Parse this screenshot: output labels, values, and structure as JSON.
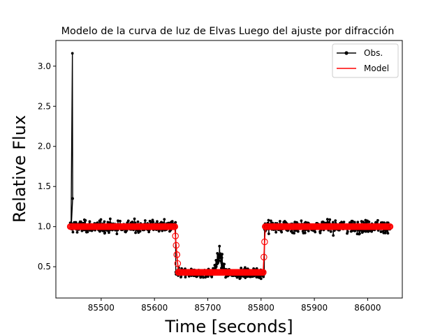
{
  "chart_data": {
    "type": "line",
    "title": "Modelo de la curva de luz de Elvas Luego del ajuste por difracción",
    "xlabel": "Time [seconds]",
    "ylabel": "Relative Flux",
    "xlim": [
      85415,
      86065
    ],
    "ylim": [
      0.11,
      3.32
    ],
    "xticks": [
      85500,
      85600,
      85700,
      85800,
      85900,
      86000
    ],
    "yticks": [
      0.5,
      1.0,
      1.5,
      2.0,
      2.5,
      3.0
    ],
    "xtick_labels": [
      "85500",
      "85600",
      "85700",
      "85800",
      "85900",
      "86000"
    ],
    "ytick_labels": [
      "0.5",
      "1.0",
      "1.5",
      "2.0",
      "2.5",
      "3.0"
    ],
    "legend_position": "top-right",
    "grid": false,
    "series": [
      {
        "name": "Obs.",
        "style": "line-with-points",
        "color": "#000000",
        "description_points": {
          "x_start": 85442,
          "x_end": 86042,
          "spike": [
            85446,
            3.16
          ],
          "baseline_level": 1.0,
          "baseline_noise": 0.05,
          "occultation_level": 0.42,
          "occultation_noise": 0.04,
          "ingress": 85640,
          "egress": 85806,
          "mid_bump": [
            85722,
            0.7
          ]
        }
      },
      {
        "name": "Model",
        "style": "line-with-open-circles",
        "color": "#ff0000",
        "steps": [
          {
            "x": [
              85442,
              85638
            ],
            "y": 1.0
          },
          {
            "x": [
              85638,
              85642
            ],
            "y": [
              1.0,
              0.65
            ]
          },
          {
            "x": [
              85642,
              85645
            ],
            "y": [
              0.65,
              0.43
            ]
          },
          {
            "x": [
              85645,
              85804
            ],
            "y": 0.43
          },
          {
            "x": [
              85804,
              85808
            ],
            "y": [
              0.43,
              1.0
            ]
          },
          {
            "x": [
              85808,
              86042
            ],
            "y": 1.0
          }
        ]
      }
    ]
  }
}
